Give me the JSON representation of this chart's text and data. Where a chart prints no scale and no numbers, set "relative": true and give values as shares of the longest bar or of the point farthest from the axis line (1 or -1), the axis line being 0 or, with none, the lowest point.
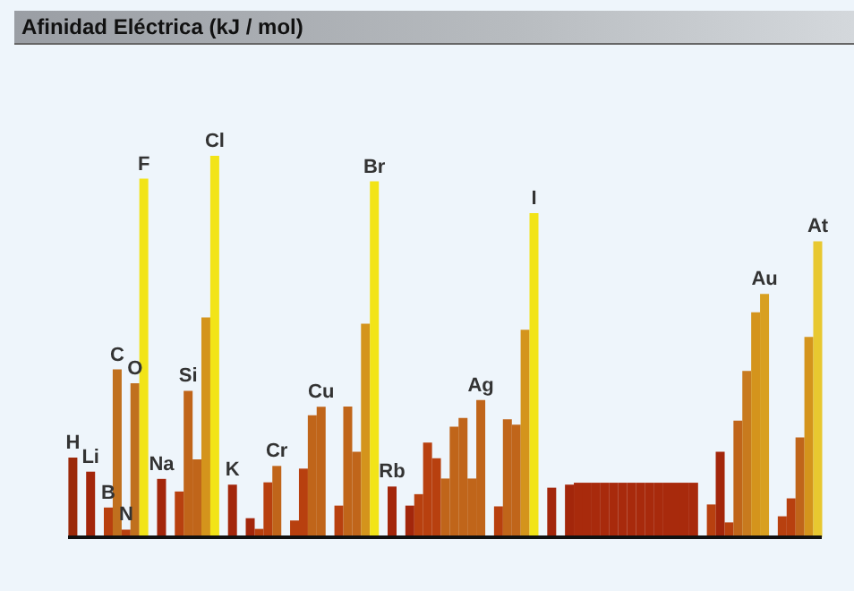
{
  "chart_data": {
    "type": "bar",
    "title": "Afinidad Eléctrica (kJ / mol)",
    "relative": true,
    "categories": [
      "H",
      null,
      "Li",
      null,
      "B",
      "C",
      "N",
      "O",
      "F",
      null,
      "Na",
      null,
      null,
      "Si",
      null,
      null,
      "Cl",
      null,
      "K",
      null,
      null,
      null,
      null,
      "Cr",
      null,
      null,
      null,
      null,
      "Cu",
      null,
      null,
      null,
      null,
      null,
      "Br",
      null,
      "Rb",
      null,
      null,
      null,
      null,
      null,
      null,
      null,
      null,
      null,
      "Ag",
      null,
      null,
      null,
      null,
      null,
      "I",
      null,
      null,
      null,
      null,
      null,
      null,
      null,
      null,
      null,
      null,
      null,
      null,
      null,
      null,
      null,
      null,
      null,
      null,
      null,
      null,
      null,
      null,
      null,
      null,
      null,
      "Au",
      null,
      null,
      null,
      null,
      null,
      "At"
    ],
    "values": [
      0.209,
      null,
      0.172,
      null,
      0.078,
      0.44,
      0.02,
      0.404,
      0.94,
      null,
      0.153,
      null,
      0.12,
      0.384,
      0.204,
      0.576,
      1,
      null,
      0.138,
      null,
      0.05,
      0.022,
      0.144,
      0.187,
      null,
      0.044,
      0.18,
      0.32,
      0.342,
      null,
      0.083,
      0.343,
      0.224,
      0.56,
      0.933,
      null,
      0.133,
      null,
      0.083,
      0.113,
      0.248,
      0.207,
      0.154,
      0.29,
      0.313,
      0.154,
      0.36,
      null,
      0.081,
      0.309,
      0.295,
      0.544,
      0.85,
      null,
      0.13,
      null,
      0.138,
      0.143,
      0.143,
      0.143,
      0.143,
      0.143,
      0.143,
      0.143,
      0.143,
      0.143,
      0.143,
      0.143,
      0.143,
      0.143,
      0.143,
      null,
      0.086,
      0.224,
      0.039,
      0.306,
      0.436,
      0.59,
      0.638,
      null,
      0.055,
      0.102,
      0.262,
      0.525,
      0.776
    ],
    "colors": [
      "#9c2a0a",
      null,
      "#a3260b",
      null,
      "#b8400f",
      "#c0701e",
      "#b8400f",
      "#c0701e",
      "#f2e418",
      null,
      "#a3260b",
      null,
      "#b8400f",
      "#c0651a",
      "#c0651a",
      "#d4941c",
      "#f2e418",
      null,
      "#a3260b",
      null,
      "#a3260b",
      "#b8400f",
      "#b8400f",
      "#c0651a",
      null,
      "#b8400f",
      "#b8400f",
      "#c0651a",
      "#c0651a",
      null,
      "#b8400f",
      "#c0651a",
      "#c0651a",
      "#d4941c",
      "#f2e418",
      null,
      "#a3260b",
      null,
      "#a3260b",
      "#b8400f",
      "#b8400f",
      "#b8400f",
      "#c0651a",
      "#c0651a",
      "#c0651a",
      "#c0651a",
      "#c0651a",
      null,
      "#b8400f",
      "#c0651a",
      "#c0651a",
      "#d4941c",
      "#f2e418",
      null,
      "#a3260b",
      null,
      "#a3260b",
      "#a82a0c",
      "#a82a0c",
      "#a82a0c",
      "#a82a0c",
      "#a82a0c",
      "#a82a0c",
      "#a82a0c",
      "#a82a0c",
      "#a82a0c",
      "#a82a0c",
      "#a82a0c",
      "#a82a0c",
      "#a82a0c",
      "#a82a0c",
      null,
      "#b8400f",
      "#a3260b",
      "#b8400f",
      "#c0651a",
      "#c87a1e",
      "#d4941c",
      "#d8a020",
      null,
      "#b8400f",
      "#b8400f",
      "#c0651a",
      "#d4941c",
      "#e8c830"
    ]
  }
}
